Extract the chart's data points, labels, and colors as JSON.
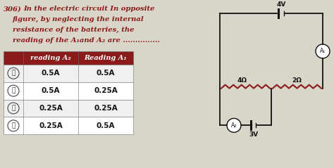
{
  "question_num": "306)",
  "question_text_lines": [
    "In the electric circuit In opposite",
    "figure, by neglecting the internal",
    "resistance of the batteries, the",
    "reading of the A₁and A₂ are ..............."
  ],
  "table_header": [
    "reading A₂",
    "Reading A₁"
  ],
  "options": [
    "Ⓐ",
    "Ⓑ",
    "Ⓒ",
    "Ⓓ"
  ],
  "col1_vals": [
    "0.5A",
    "0.5A",
    "0.25A",
    "0.25A"
  ],
  "col2_vals": [
    "0.5A",
    "0.25A",
    "0.25A",
    "0.5A"
  ],
  "header_bg": "#8B1A1A",
  "header_fg": "#ffffff",
  "row_bg_even": "#f0f0f0",
  "row_bg_odd": "#ffffff",
  "text_color_q": "#8B1A1A",
  "bg_color": "#d9d5c8",
  "circuit_line_color": "#111111",
  "resistor_color": "#8B1A1A",
  "battery_4v_label": "4V",
  "battery_3v_label": "3V",
  "resistor1_label": "4Ω",
  "resistor2_label": "2Ω",
  "ammeter1_label": "A₁",
  "ammeter2_label": "A₂"
}
